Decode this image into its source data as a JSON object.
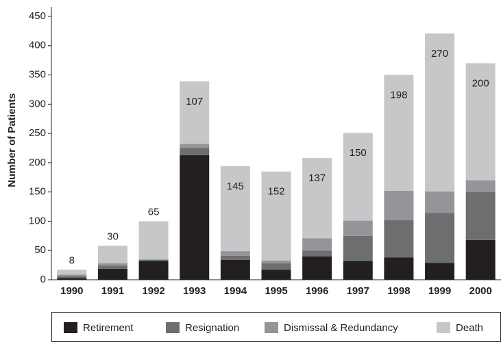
{
  "chart_data": {
    "type": "stacked-bar",
    "categories": [
      "1990",
      "1991",
      "1992",
      "1993",
      "1994",
      "1995",
      "1996",
      "1997",
      "1998",
      "1999",
      "2000"
    ],
    "y_label": "Number of Patients",
    "series": [
      {
        "name": "Retirement",
        "color": "#231f20",
        "values": [
          3,
          19,
          32,
          213,
          34,
          17,
          40,
          32,
          38,
          29,
          68
        ]
      },
      {
        "name": "Resignation",
        "color": "#6d6e70",
        "values": [
          3,
          5,
          2,
          12,
          7,
          11,
          10,
          43,
          64,
          85,
          82
        ]
      },
      {
        "name": "Dismissal & Redundancy",
        "color": "#939598",
        "values": [
          3,
          4,
          1,
          7,
          8,
          5,
          21,
          26,
          50,
          37,
          20
        ]
      },
      {
        "name": "Death",
        "color": "#c6c7c8",
        "values": [
          8,
          30,
          65,
          107,
          145,
          152,
          137,
          150,
          198,
          270,
          200
        ],
        "labeled": true
      }
    ],
    "ylim": [
      0,
      450
    ],
    "yticks": [
      0,
      50,
      100,
      150,
      200,
      250,
      300,
      350,
      400,
      450
    ],
    "legend": "bottom"
  }
}
